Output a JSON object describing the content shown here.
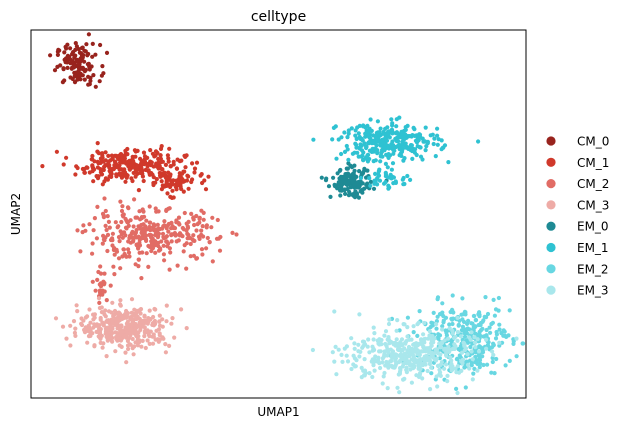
{
  "chart_data": {
    "type": "scatter",
    "title": "celltype",
    "xlabel": "UMAP1",
    "ylabel": "UMAP2",
    "grid": false,
    "show_ticks": false,
    "legend_placement": "right-center",
    "xlim": [
      0,
      100
    ],
    "ylim": [
      0,
      100
    ],
    "legend": [
      {
        "name": "CM_0",
        "color": "#98231d"
      },
      {
        "name": "CM_1",
        "color": "#d0392b"
      },
      {
        "name": "CM_2",
        "color": "#e16c65"
      },
      {
        "name": "CM_3",
        "color": "#eeaba6"
      },
      {
        "name": "EM_0",
        "color": "#1e8a94"
      },
      {
        "name": "EM_1",
        "color": "#2fc2d2"
      },
      {
        "name": "EM_2",
        "color": "#68d7e2"
      },
      {
        "name": "EM_3",
        "color": "#a9e7ec"
      }
    ],
    "clusters": [
      {
        "series": "CM_0",
        "center": [
          9.5,
          90.5
        ],
        "spread": [
          2.2,
          2.8
        ],
        "points": 120
      },
      {
        "series": "CM_1",
        "center": [
          20.2,
          63.3
        ],
        "spread": [
          5.5,
          2.2
        ],
        "points": 260
      },
      {
        "series": "CM_1",
        "center": [
          28.3,
          58.6
        ],
        "spread": [
          2.6,
          1.6
        ],
        "points": 80
      },
      {
        "series": "CM_2",
        "center": [
          24.5,
          44.2
        ],
        "spread": [
          6.5,
          3.5
        ],
        "points": 320
      },
      {
        "series": "CM_2",
        "center": [
          14.4,
          29.9
        ],
        "spread": [
          0.8,
          2.2
        ],
        "points": 22
      },
      {
        "series": "CM_3",
        "center": [
          18.9,
          19.2
        ],
        "spread": [
          4.6,
          2.8
        ],
        "points": 380
      },
      {
        "series": "EM_0",
        "center": [
          64.7,
          58.4
        ],
        "spread": [
          2.0,
          1.9
        ],
        "points": 140
      },
      {
        "series": "EM_1",
        "center": [
          72.4,
          69.5
        ],
        "spread": [
          5.0,
          2.6
        ],
        "points": 300
      },
      {
        "series": "EM_1",
        "center": [
          71.8,
          59.7
        ],
        "spread": [
          2.6,
          1.4
        ],
        "points": 40
      },
      {
        "series": "EM_2",
        "center": [
          87.5,
          16.0
        ],
        "spread": [
          4.8,
          4.6
        ],
        "points": 320
      },
      {
        "series": "EM_3",
        "center": [
          76.6,
          11.7
        ],
        "spread": [
          6.5,
          3.7
        ],
        "points": 420
      }
    ]
  }
}
